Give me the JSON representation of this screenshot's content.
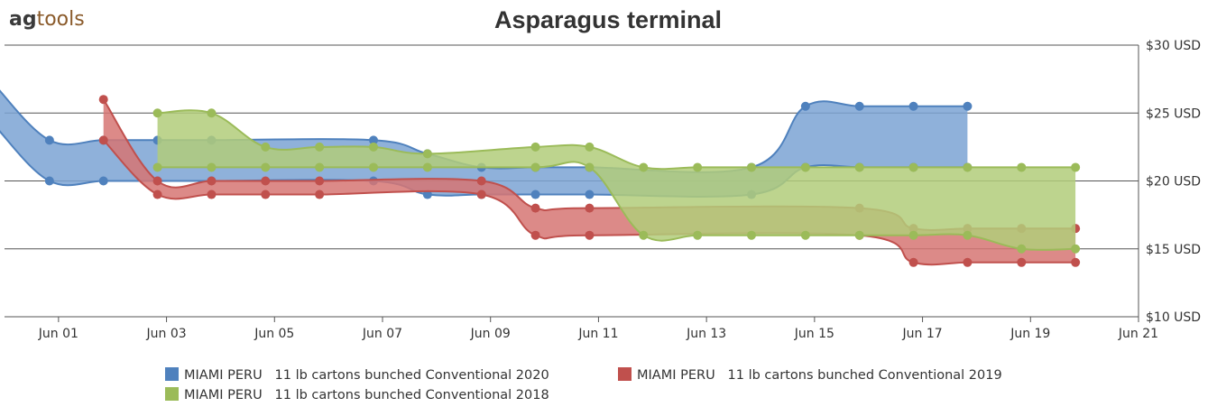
{
  "logo": {
    "part1": "ag",
    "part2": "tools"
  },
  "chart_data": {
    "type": "area",
    "title": "Asparagus terminal",
    "subtitle": "",
    "xlabel": "",
    "ylabel": "",
    "ylim": [
      10,
      30
    ],
    "xlim": [
      "2020-05-31",
      "2020-06-21"
    ],
    "y_ticks": [
      {
        "value": 30,
        "label": "$30 USD"
      },
      {
        "value": 25,
        "label": "$25 USD"
      },
      {
        "value": 20,
        "label": "$20 USD"
      },
      {
        "value": 15,
        "label": "$15 USD"
      },
      {
        "value": 10,
        "label": "$10 USD"
      }
    ],
    "x_ticks": [
      {
        "date": "2020-06-01",
        "label": "Jun 01"
      },
      {
        "date": "2020-06-03",
        "label": "Jun 03"
      },
      {
        "date": "2020-06-05",
        "label": "Jun 05"
      },
      {
        "date": "2020-06-07",
        "label": "Jun 07"
      },
      {
        "date": "2020-06-09",
        "label": "Jun 09"
      },
      {
        "date": "2020-06-11",
        "label": "Jun 11"
      },
      {
        "date": "2020-06-13",
        "label": "Jun 13"
      },
      {
        "date": "2020-06-15",
        "label": "Jun 15"
      },
      {
        "date": "2020-06-17",
        "label": "Jun 17"
      },
      {
        "date": "2020-06-19",
        "label": "Jun 19"
      },
      {
        "date": "2020-06-21",
        "label": "Jun 21"
      }
    ],
    "grid": true,
    "y_axis_position": "right",
    "legend_position": "bottom",
    "series": [
      {
        "name": "MIAMI PERU   11 lb cartons bunched Conventional 2020",
        "color": "#4f81bd",
        "fill": "#7ba3d4",
        "points": [
          {
            "x": "2020-05-31",
            "low": 24,
            "high": 27
          },
          {
            "x": "2020-06-01",
            "low": 20,
            "high": 23
          },
          {
            "x": "2020-06-02",
            "low": 20,
            "high": 23
          },
          {
            "x": "2020-06-03",
            "low": 20,
            "high": 23
          },
          {
            "x": "2020-06-04",
            "low": 20,
            "high": 23
          },
          {
            "x": "2020-06-07",
            "low": 20,
            "high": 23
          },
          {
            "x": "2020-06-08",
            "low": 19,
            "high": 22
          },
          {
            "x": "2020-06-09",
            "low": 19,
            "high": 21
          },
          {
            "x": "2020-06-10",
            "low": 19,
            "high": 21
          },
          {
            "x": "2020-06-11",
            "low": 19,
            "high": 21
          },
          {
            "x": "2020-06-14",
            "low": 19,
            "high": 21
          },
          {
            "x": "2020-06-15",
            "low": 21,
            "high": 25.5
          },
          {
            "x": "2020-06-16",
            "low": 21,
            "high": 25.5
          },
          {
            "x": "2020-06-17",
            "low": 21,
            "high": 25.5
          },
          {
            "x": "2020-06-18",
            "low": 21,
            "high": 25.5
          }
        ]
      },
      {
        "name": "MIAMI PERU   11 lb cartons bunched Conventional 2019",
        "color": "#c0504d",
        "fill": "#d67573",
        "points": [
          {
            "x": "2020-06-02",
            "low": 23,
            "high": 26
          },
          {
            "x": "2020-06-03",
            "low": 19,
            "high": 20
          },
          {
            "x": "2020-06-04",
            "low": 19,
            "high": 20
          },
          {
            "x": "2020-06-05",
            "low": 19,
            "high": 20
          },
          {
            "x": "2020-06-06",
            "low": 19,
            "high": 20
          },
          {
            "x": "2020-06-09",
            "low": 19,
            "high": 20
          },
          {
            "x": "2020-06-10",
            "low": 16,
            "high": 18
          },
          {
            "x": "2020-06-11",
            "low": 16,
            "high": 18
          },
          {
            "x": "2020-06-16",
            "low": 16,
            "high": 18
          },
          {
            "x": "2020-06-17",
            "low": 14,
            "high": 16.5
          },
          {
            "x": "2020-06-18",
            "low": 14,
            "high": 16.5
          },
          {
            "x": "2020-06-19",
            "low": 14,
            "high": 16.5
          },
          {
            "x": "2020-06-20",
            "low": 14,
            "high": 16.5
          }
        ]
      },
      {
        "name": "MIAMI PERU   11 lb cartons bunched Conventional 2018",
        "color": "#9bbb59",
        "fill": "#b1cc7a",
        "points": [
          {
            "x": "2020-06-03",
            "low": 21,
            "high": 25
          },
          {
            "x": "2020-06-04",
            "low": 21,
            "high": 25
          },
          {
            "x": "2020-06-05",
            "low": 21,
            "high": 22.5
          },
          {
            "x": "2020-06-06",
            "low": 21,
            "high": 22.5
          },
          {
            "x": "2020-06-07",
            "low": 21,
            "high": 22.5
          },
          {
            "x": "2020-06-08",
            "low": 21,
            "high": 22
          },
          {
            "x": "2020-06-10",
            "low": 21,
            "high": 22.5
          },
          {
            "x": "2020-06-11",
            "low": 21,
            "high": 22.5
          },
          {
            "x": "2020-06-12",
            "low": 16,
            "high": 21
          },
          {
            "x": "2020-06-13",
            "low": 16,
            "high": 21
          },
          {
            "x": "2020-06-14",
            "low": 16,
            "high": 21
          },
          {
            "x": "2020-06-15",
            "low": 16,
            "high": 21
          },
          {
            "x": "2020-06-16",
            "low": 16,
            "high": 21
          },
          {
            "x": "2020-06-17",
            "low": 16,
            "high": 21
          },
          {
            "x": "2020-06-18",
            "low": 16,
            "high": 21
          },
          {
            "x": "2020-06-19",
            "low": 15,
            "high": 21
          },
          {
            "x": "2020-06-20",
            "low": 15,
            "high": 21
          }
        ]
      }
    ]
  }
}
